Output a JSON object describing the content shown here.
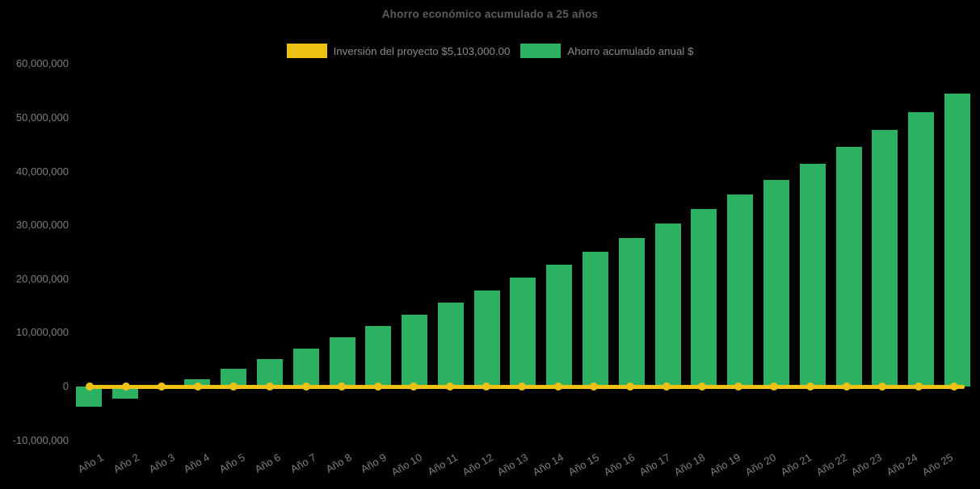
{
  "colors": {
    "background": "#000000",
    "title_text": "#5c5c5c",
    "axis_text": "#7f7f7f",
    "legend_text": "#8c8c8c",
    "bar_green": "#2cb163",
    "line_yellow": "#eec115"
  },
  "chart_data": {
    "type": "bar",
    "title": "Ahorro económico acumulado a 25 años",
    "legend_position": "top",
    "grid": false,
    "categories": [
      "Año 1",
      "Año 2",
      "Año 3",
      "Año 4",
      "Año 5",
      "Año 6",
      "Año 7",
      "Año 8",
      "Año 9",
      "Año 10",
      "Año 11",
      "Año 12",
      "Año 13",
      "Año 14",
      "Año 15",
      "Año 16",
      "Año 17",
      "Año 18",
      "Año 19",
      "Año 20",
      "Año 21",
      "Año 22",
      "Año 23",
      "Año 24",
      "Año 25"
    ],
    "series": [
      {
        "name": "Inversión del proyecto $5,103,000.00",
        "type": "line",
        "marker": "circle",
        "color": "#eec115",
        "constant_value": 0
      },
      {
        "name": "Ahorro acumulado anual $",
        "type": "bar",
        "color": "#2cb163",
        "values": [
          -3800000,
          -2300000,
          -300000,
          1400000,
          3300000,
          5100000,
          7100000,
          9100000,
          11300000,
          13400000,
          15600000,
          17900000,
          20200000,
          22600000,
          25100000,
          27700000,
          30300000,
          33000000,
          35700000,
          38500000,
          41500000,
          44600000,
          47800000,
          51100000,
          54500000
        ]
      }
    ],
    "y_axis": {
      "range": [
        -10000000,
        60000000
      ],
      "ticks": [
        {
          "label": "60,000,000",
          "value": 60000000
        },
        {
          "label": "50,000,000",
          "value": 50000000
        },
        {
          "label": "40,000,000",
          "value": 40000000
        },
        {
          "label": "30,000,000",
          "value": 30000000
        },
        {
          "label": "20,000,000",
          "value": 20000000
        },
        {
          "label": "10,000,000",
          "value": 10000000
        },
        {
          "label": "0",
          "value": 0
        },
        {
          "label": "-10,000,000",
          "value": -10000000
        }
      ]
    },
    "x_axis": {
      "label_rotation_deg": 30
    }
  }
}
